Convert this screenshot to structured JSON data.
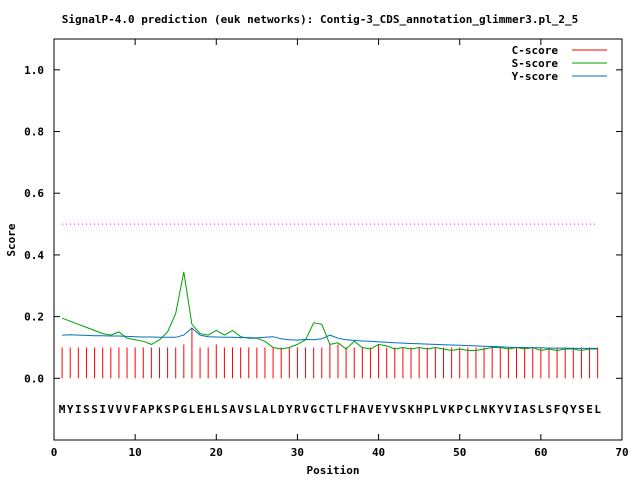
{
  "chart_data": {
    "type": "line",
    "title": "SignalP-4.0 prediction (euk networks): Contig-3_CDS_annotation_glimmer3.pl_2_5",
    "xlabel": "Position",
    "ylabel": "Score",
    "xlim": [
      0,
      70
    ],
    "ylim": [
      -0.2,
      1.1
    ],
    "xticks": [
      0,
      10,
      20,
      30,
      40,
      50,
      60,
      70
    ],
    "xtick_labels": [
      "0",
      "10",
      "20",
      "30",
      "40",
      "50",
      "60",
      "70"
    ],
    "yticks": [
      0.0,
      0.2,
      0.4,
      0.6,
      0.8,
      1.0
    ],
    "ytick_labels": [
      "0.0",
      "0.2",
      "0.4",
      "0.6",
      "0.8",
      "1.0"
    ],
    "grid": false,
    "legend_position": "top-right",
    "sequence": "MYISSIVVVFAPKSPGLEHLSAVSLALDYRVGCTLFHAVEYVSKHPLVKPCLNKYVIASLSFQYSEL",
    "threshold": {
      "value": 0.5,
      "color": "#ff00ff",
      "style": "dotted"
    },
    "series": [
      {
        "name": "C-score",
        "style": "impulses",
        "color": "#ff0000",
        "values": [
          0.1,
          0.1,
          0.1,
          0.1,
          0.1,
          0.1,
          0.1,
          0.1,
          0.1,
          0.1,
          0.1,
          0.1,
          0.1,
          0.1,
          0.1,
          0.11,
          0.16,
          0.1,
          0.1,
          0.11,
          0.1,
          0.1,
          0.1,
          0.1,
          0.1,
          0.1,
          0.1,
          0.1,
          0.1,
          0.1,
          0.1,
          0.1,
          0.1,
          0.11,
          0.11,
          0.1,
          0.1,
          0.1,
          0.1,
          0.11,
          0.1,
          0.1,
          0.1,
          0.1,
          0.1,
          0.1,
          0.1,
          0.1,
          0.1,
          0.1,
          0.1,
          0.1,
          0.1,
          0.1,
          0.1,
          0.1,
          0.1,
          0.1,
          0.1,
          0.1,
          0.1,
          0.1,
          0.1,
          0.1,
          0.1,
          0.1,
          0.1
        ]
      },
      {
        "name": "S-score",
        "style": "line",
        "color": "#00a000",
        "values": [
          0.195,
          0.185,
          0.175,
          0.165,
          0.155,
          0.145,
          0.14,
          0.15,
          0.13,
          0.125,
          0.12,
          0.11,
          0.125,
          0.15,
          0.21,
          0.345,
          0.175,
          0.145,
          0.14,
          0.155,
          0.14,
          0.155,
          0.135,
          0.13,
          0.13,
          0.12,
          0.1,
          0.095,
          0.1,
          0.11,
          0.125,
          0.18,
          0.175,
          0.11,
          0.115,
          0.095,
          0.12,
          0.1,
          0.095,
          0.11,
          0.105,
          0.095,
          0.1,
          0.095,
          0.1,
          0.095,
          0.1,
          0.095,
          0.09,
          0.095,
          0.09,
          0.09,
          0.095,
          0.1,
          0.1,
          0.095,
          0.1,
          0.095,
          0.1,
          0.09,
          0.095,
          0.09,
          0.095,
          0.095,
          0.09,
          0.095,
          0.095
        ]
      },
      {
        "name": "Y-score",
        "style": "line",
        "color": "#0070c0",
        "values": [
          0.14,
          0.141,
          0.14,
          0.139,
          0.138,
          0.138,
          0.137,
          0.137,
          0.136,
          0.135,
          0.134,
          0.134,
          0.133,
          0.133,
          0.133,
          0.14,
          0.163,
          0.14,
          0.135,
          0.134,
          0.133,
          0.133,
          0.132,
          0.132,
          0.131,
          0.133,
          0.135,
          0.128,
          0.125,
          0.124,
          0.126,
          0.125,
          0.128,
          0.14,
          0.13,
          0.125,
          0.123,
          0.121,
          0.12,
          0.118,
          0.117,
          0.115,
          0.114,
          0.113,
          0.112,
          0.111,
          0.11,
          0.109,
          0.108,
          0.107,
          0.106,
          0.105,
          0.104,
          0.103,
          0.102,
          0.101,
          0.1,
          0.1,
          0.099,
          0.099,
          0.098,
          0.098,
          0.098,
          0.097,
          0.097,
          0.097,
          0.097
        ]
      }
    ]
  }
}
